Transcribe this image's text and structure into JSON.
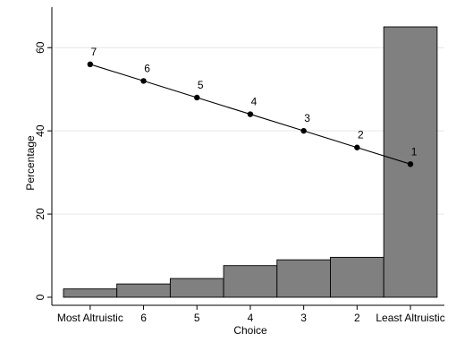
{
  "chart_data": {
    "type": "bar",
    "title": "",
    "xlabel": "Choice",
    "ylabel": "Percentage",
    "categories": [
      "Most Altruistic",
      "6",
      "5",
      "4",
      "3",
      "2",
      "Least Altruistic"
    ],
    "ylim": [
      0,
      65
    ],
    "yticks": [
      0,
      20,
      40,
      60
    ],
    "grid": true,
    "series": [
      {
        "kind": "bar",
        "values": [
          2,
          3.2,
          4.5,
          7.6,
          9,
          9.6,
          65
        ],
        "color": "#808080"
      },
      {
        "kind": "line",
        "values": [
          56,
          52,
          48,
          44,
          40,
          36,
          32
        ],
        "point_labels": [
          "7",
          "6",
          "5",
          "4",
          "3",
          "2",
          "1"
        ],
        "color": "#000000"
      }
    ]
  }
}
